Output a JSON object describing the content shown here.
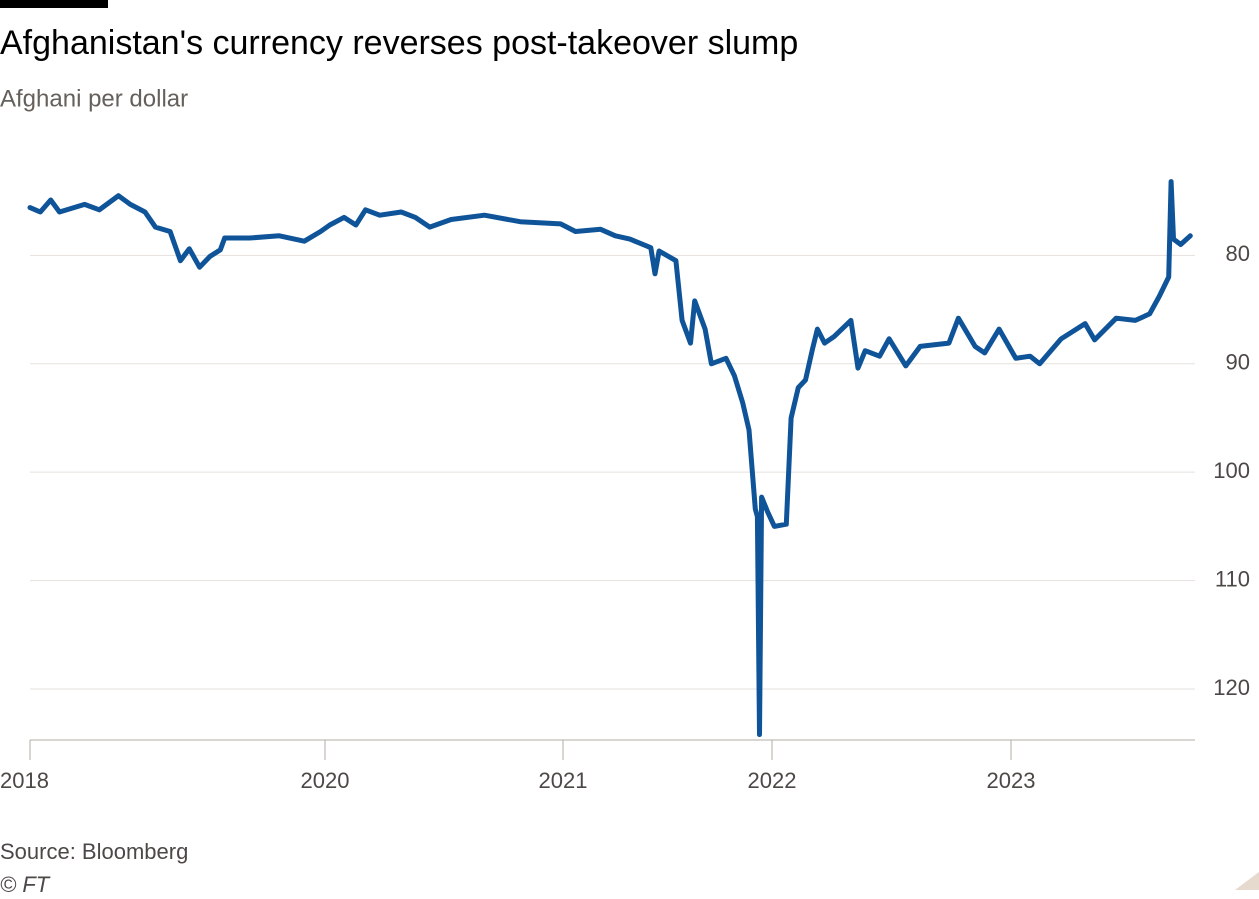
{
  "chart_data": {
    "type": "line",
    "title": "Afghanistan's currency reverses post-takeover slump",
    "subtitle": "Afghani per dollar",
    "source": "Source: Bloomberg",
    "credit": "© FT",
    "y_inverted": true,
    "grid": true,
    "xlim": [
      2018,
      2023.77
    ],
    "xticks": [
      2018,
      2020,
      2021,
      2022,
      2023
    ],
    "ylim": [
      72.5,
      124.7
    ],
    "yticks": [
      80,
      90,
      100,
      110,
      120
    ],
    "series": [
      {
        "name": "Afghani per dollar",
        "color": "#0f5499",
        "x": [
          2018.0,
          2018.07,
          2018.14,
          2018.2,
          2018.37,
          2018.47,
          2018.6,
          2018.68,
          2018.78,
          2018.85,
          2018.95,
          2019.02,
          2019.08,
          2019.15,
          2019.22,
          2019.29,
          2019.32,
          2019.49,
          2019.69,
          2019.86,
          2019.97,
          2020.02,
          2020.08,
          2020.13,
          2020.17,
          2020.23,
          2020.32,
          2020.38,
          2020.44,
          2020.53,
          2020.67,
          2020.82,
          2020.99,
          2021.06,
          2021.18,
          2021.25,
          2021.32,
          2021.42,
          2021.44,
          2021.46,
          2021.54,
          2021.57,
          2021.61,
          2021.63,
          2021.68,
          2021.71,
          2021.78,
          2021.82,
          2021.86,
          2021.89,
          2021.92,
          2021.93,
          2021.94,
          2021.95,
          2021.98,
          2022.01,
          2022.06,
          2022.08,
          2022.11,
          2022.14,
          2022.17,
          2022.19,
          2022.22,
          2022.26,
          2022.33,
          2022.36,
          2022.39,
          2022.45,
          2022.49,
          2022.56,
          2022.62,
          2022.74,
          2022.78,
          2022.85,
          2022.89,
          2022.95,
          2023.02,
          2023.08,
          2023.12,
          2023.21,
          2023.31,
          2023.35,
          2023.44,
          2023.52,
          2023.58,
          2023.62,
          2023.66,
          2023.67,
          2023.68,
          2023.71,
          2023.75
        ],
        "values": [
          75.6,
          76.0,
          74.9,
          76.0,
          75.3,
          75.8,
          74.5,
          75.3,
          76.0,
          77.4,
          77.8,
          80.5,
          79.4,
          81.1,
          80.1,
          79.5,
          78.4,
          78.4,
          78.2,
          78.7,
          77.8,
          77.2,
          76.5,
          77.2,
          75.8,
          76.3,
          76.0,
          76.5,
          77.4,
          76.7,
          76.3,
          76.9,
          77.1,
          77.8,
          77.6,
          78.2,
          78.5,
          79.3,
          81.7,
          79.6,
          80.5,
          86.0,
          88.1,
          84.2,
          86.8,
          90.0,
          89.5,
          91.1,
          93.6,
          96.1,
          103.4,
          104.1,
          124.2,
          102.3,
          103.7,
          105.0,
          104.8,
          95.0,
          92.2,
          91.5,
          88.6,
          86.8,
          88.1,
          87.5,
          86.0,
          90.4,
          88.8,
          89.3,
          87.7,
          90.2,
          88.4,
          88.1,
          85.8,
          88.4,
          89.0,
          86.8,
          89.5,
          89.3,
          90.0,
          87.7,
          86.3,
          87.8,
          85.8,
          86.0,
          85.4,
          83.8,
          82.0,
          73.2,
          78.5,
          79.0,
          78.2
        ]
      }
    ]
  }
}
